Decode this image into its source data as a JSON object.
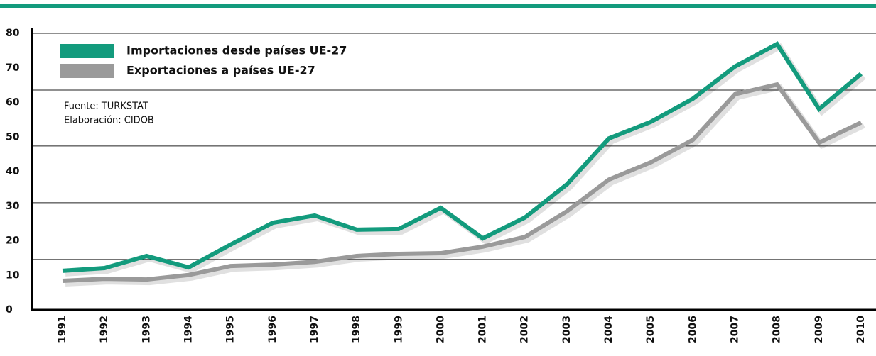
{
  "chart_data": {
    "type": "line",
    "source": "Fuente: TURKSTAT",
    "credit": "Elaboración: CIDOB",
    "categories": [
      "1991",
      "1992",
      "1993",
      "1994",
      "1995",
      "1996",
      "1997",
      "1998",
      "1999",
      "2000",
      "2001",
      "2002",
      "2003",
      "2004",
      "2005",
      "2006",
      "2007",
      "2008",
      "2009",
      "2010"
    ],
    "series": [
      {
        "name": "Importaciones desde países UE-27",
        "color": "#139b7d",
        "values": [
          11.3,
          12.1,
          15.6,
          12.3,
          18.9,
          25.2,
          27.3,
          23.2,
          23.4,
          29.5,
          20.7,
          26.7,
          36.3,
          49.6,
          54.4,
          61.1,
          70.4,
          76.9,
          58.1,
          68.3
        ]
      },
      {
        "name": "Exportaciones a países UE-27",
        "color": "#9a9a9a",
        "values": [
          8.4,
          9.0,
          8.8,
          10.1,
          12.7,
          13.1,
          13.9,
          15.6,
          16.2,
          16.4,
          18.3,
          21.1,
          28.5,
          37.7,
          42.7,
          49.2,
          62.4,
          65.2,
          48.4,
          54.2
        ]
      }
    ],
    "ylim": [
      0,
      80
    ],
    "yticks": [
      0,
      10,
      20,
      30,
      40,
      50,
      60,
      70,
      80
    ],
    "grid_values": [
      14.6,
      31,
      47.4,
      63.6,
      80
    ],
    "legend": "upper left"
  }
}
